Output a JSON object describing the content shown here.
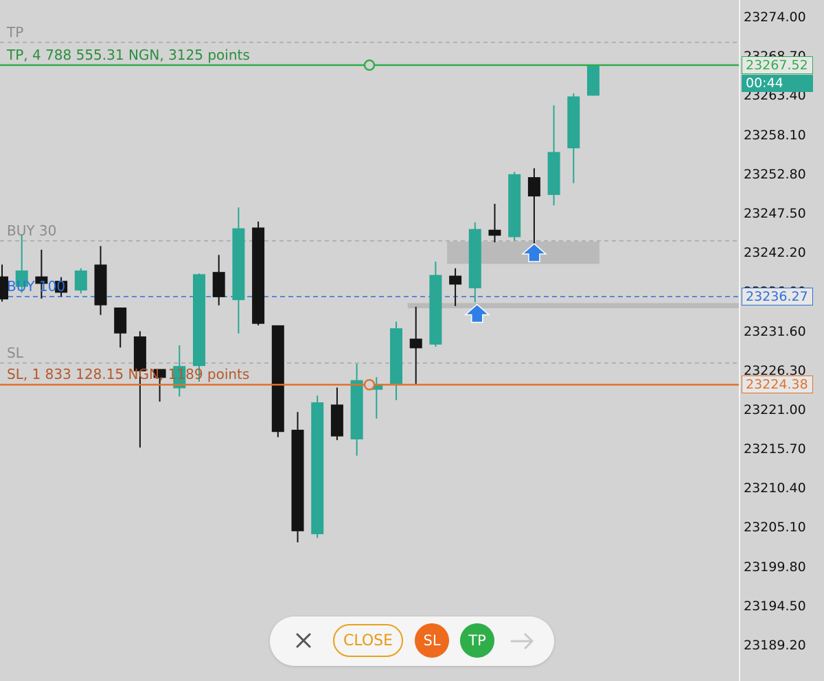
{
  "colors": {
    "background": "#d3d3d3",
    "bull": "#2aa795",
    "bear": "#141414",
    "tp": "#2fae4a",
    "sl": "#e0722d",
    "buy": "#2f6fd8",
    "grid_dash": "#a6a6a6",
    "zone": "#b5b5b5",
    "arrow": "#2f7fe6"
  },
  "price_axis": {
    "min": 23189.2,
    "max": 23274.0,
    "labels": [
      "23274.00",
      "23268.70",
      "23263.40",
      "23258.10",
      "23252.80",
      "23247.50",
      "23242.20",
      "23236.90",
      "23231.60",
      "23226.30",
      "23221.00",
      "23215.70",
      "23210.40",
      "23205.10",
      "23199.80",
      "23194.50",
      "23189.20"
    ]
  },
  "levels": {
    "tp_pending": {
      "label": "TP",
      "price": 23270.6
    },
    "tp": {
      "label": "TP, 4 788 555.31 NGN, 3125 points",
      "price": 23267.52,
      "tag": "23267.52"
    },
    "buy30": {
      "label": "BUY 30",
      "price": 23243.8
    },
    "buy100": {
      "label": "BUY 100",
      "price": 23236.27,
      "tag": "23236.27"
    },
    "sl_pending": {
      "label": "SL",
      "price": 23227.3
    },
    "sl": {
      "label": "SL, 1 833 128.15 NGN, 1189 points",
      "price": 23224.38,
      "tag": "23224.38"
    }
  },
  "timer": "00:44",
  "candles": [
    {
      "o": 23239.0,
      "h": 23240.6,
      "l": 23235.6,
      "c": 23235.9
    },
    {
      "o": 23237.6,
      "h": 23244.7,
      "l": 23236.8,
      "c": 23239.8
    },
    {
      "o": 23239.0,
      "h": 23242.6,
      "l": 23236.0,
      "c": 23238.0
    },
    {
      "o": 23238.4,
      "h": 23238.9,
      "l": 23236.3,
      "c": 23236.8
    },
    {
      "o": 23237.1,
      "h": 23240.1,
      "l": 23236.7,
      "c": 23239.8
    },
    {
      "o": 23240.6,
      "h": 23243.1,
      "l": 23233.8,
      "c": 23235.1
    },
    {
      "o": 23234.8,
      "h": 23234.8,
      "l": 23229.4,
      "c": 23231.3
    },
    {
      "o": 23230.9,
      "h": 23231.6,
      "l": 23215.9,
      "c": 23226.2
    },
    {
      "o": 23226.5,
      "h": 23226.5,
      "l": 23222.1,
      "c": 23225.3
    },
    {
      "o": 23223.9,
      "h": 23229.7,
      "l": 23222.8,
      "c": 23226.9
    },
    {
      "o": 23226.9,
      "h": 23239.4,
      "l": 23224.8,
      "c": 23239.3
    },
    {
      "o": 23239.6,
      "h": 23241.9,
      "l": 23235.1,
      "c": 23236.2
    },
    {
      "o": 23235.8,
      "h": 23248.3,
      "l": 23231.3,
      "c": 23245.5
    },
    {
      "o": 23245.6,
      "h": 23246.4,
      "l": 23232.4,
      "c": 23232.6
    },
    {
      "o": 23232.4,
      "h": 23232.4,
      "l": 23217.3,
      "c": 23218.0
    },
    {
      "o": 23218.3,
      "h": 23220.7,
      "l": 23203.1,
      "c": 23204.6
    },
    {
      "o": 23204.2,
      "h": 23222.9,
      "l": 23203.7,
      "c": 23222.0
    },
    {
      "o": 23221.7,
      "h": 23224.0,
      "l": 23216.9,
      "c": 23217.4
    },
    {
      "o": 23217.0,
      "h": 23227.2,
      "l": 23214.8,
      "c": 23225.0
    },
    {
      "o": 23223.7,
      "h": 23225.4,
      "l": 23219.8,
      "c": 23224.3
    },
    {
      "o": 23224.5,
      "h": 23232.9,
      "l": 23222.3,
      "c": 23232.0
    },
    {
      "o": 23230.6,
      "h": 23234.9,
      "l": 23224.5,
      "c": 23229.3
    },
    {
      "o": 23229.8,
      "h": 23241.0,
      "l": 23229.5,
      "c": 23239.2
    },
    {
      "o": 23239.1,
      "h": 23240.1,
      "l": 23235.0,
      "c": 23237.9
    },
    {
      "o": 23237.4,
      "h": 23246.3,
      "l": 23235.5,
      "c": 23245.4
    },
    {
      "o": 23245.3,
      "h": 23248.8,
      "l": 23243.6,
      "c": 23244.5
    },
    {
      "o": 23244.3,
      "h": 23253.1,
      "l": 23243.8,
      "c": 23252.8
    },
    {
      "o": 23252.4,
      "h": 23253.6,
      "l": 23243.4,
      "c": 23249.8
    },
    {
      "o": 23250.0,
      "h": 23262.1,
      "l": 23248.6,
      "c": 23255.8
    },
    {
      "o": 23256.3,
      "h": 23263.7,
      "l": 23251.6,
      "c": 23263.3
    },
    {
      "o": 23263.4,
      "h": 23267.5,
      "l": 23263.4,
      "c": 23267.5
    }
  ],
  "zones": [
    {
      "price_top": 23243.7,
      "price_bottom": 23240.7,
      "start_candle": 23,
      "end_candle": 30
    },
    {
      "price_top": 23235.4,
      "price_bottom": 23234.7,
      "start_candle": 21,
      "end_candle": 38
    }
  ],
  "markers": [
    {
      "candle": 24,
      "price": 23235.4
    },
    {
      "candle": 27,
      "price": 23243.6
    }
  ],
  "toolbar": {
    "close_label": "CLOSE",
    "sl_label": "SL",
    "tp_label": "TP"
  }
}
